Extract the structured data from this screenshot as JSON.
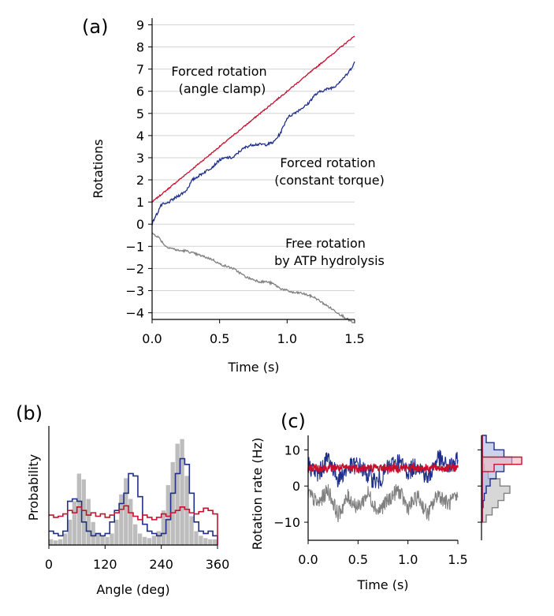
{
  "colors": {
    "red": "#c8102e",
    "blue": "#1f2f8a",
    "gray": "#808080",
    "hist_gray": "#bdbdbd",
    "grid": "#d3d3d3",
    "blue_fill": "#a9b4e0",
    "red_fill": "#f2b7bf"
  },
  "chart_data": [
    {
      "panel": "(a)",
      "type": "line",
      "xlabel": "Time (s)",
      "ylabel": "Rotations",
      "xlim": [
        0,
        1.5
      ],
      "ylim": [
        -4.3,
        9.3
      ],
      "xticks": [
        "0.0",
        "0.5",
        "1.0",
        "1.5"
      ],
      "yticks": [
        "−4",
        "−3",
        "−2",
        "−1",
        "0",
        "1",
        "2",
        "3",
        "4",
        "5",
        "6",
        "7",
        "8",
        "9"
      ],
      "grid": "horizontal",
      "series": [
        {
          "label_lines": [
            "Forced rotation",
            "(angle clamp)"
          ],
          "color": "red",
          "x": [
            0,
            1.5
          ],
          "y": [
            1.0,
            8.5
          ]
        },
        {
          "label_lines": [
            "Forced rotation",
            "(constant torque)"
          ],
          "color": "blue",
          "x": [
            0,
            0.02,
            0.04,
            0.06,
            0.08,
            0.1,
            0.15,
            0.2,
            0.25,
            0.3,
            0.35,
            0.4,
            0.45,
            0.5,
            0.55,
            0.6,
            0.65,
            0.7,
            0.75,
            0.8,
            0.85,
            0.9,
            0.95,
            1.0,
            1.05,
            1.1,
            1.15,
            1.2,
            1.25,
            1.3,
            1.35,
            1.4,
            1.45,
            1.5
          ],
          "y": [
            0.0,
            0.3,
            0.5,
            0.8,
            0.9,
            0.9,
            1.1,
            1.3,
            1.5,
            2.0,
            2.2,
            2.4,
            2.6,
            2.9,
            3.0,
            3.0,
            3.3,
            3.5,
            3.6,
            3.6,
            3.6,
            3.7,
            4.1,
            4.8,
            5.0,
            5.2,
            5.4,
            5.8,
            6.0,
            6.1,
            6.2,
            6.5,
            6.8,
            7.3
          ]
        },
        {
          "label_lines": [
            "Free rotation",
            "by ATP hydrolysis"
          ],
          "color": "gray",
          "x": [
            0,
            0.05,
            0.1,
            0.15,
            0.2,
            0.25,
            0.3,
            0.35,
            0.4,
            0.45,
            0.5,
            0.55,
            0.6,
            0.65,
            0.7,
            0.75,
            0.8,
            0.85,
            0.9,
            0.95,
            1.0,
            1.05,
            1.1,
            1.15,
            1.2,
            1.25,
            1.3,
            1.35,
            1.4,
            1.45,
            1.5
          ],
          "y": [
            -0.4,
            -0.6,
            -1.0,
            -1.1,
            -1.2,
            -1.2,
            -1.3,
            -1.4,
            -1.5,
            -1.6,
            -1.8,
            -1.9,
            -2.0,
            -2.2,
            -2.4,
            -2.5,
            -2.6,
            -2.6,
            -2.7,
            -2.9,
            -3.0,
            -3.1,
            -3.1,
            -3.2,
            -3.3,
            -3.5,
            -3.7,
            -3.9,
            -4.1,
            -4.3,
            -4.5
          ]
        }
      ]
    },
    {
      "panel": "(b)",
      "type": "bar",
      "xlabel": "Angle (deg)",
      "ylabel": "Probability",
      "xlim": [
        0,
        360
      ],
      "xticks": [
        "0",
        "120",
        "240",
        "360"
      ],
      "bin_width": 10,
      "free_rotation_hist": [
        0.05,
        0.04,
        0.05,
        0.1,
        0.22,
        0.38,
        0.62,
        0.57,
        0.4,
        0.2,
        0.1,
        0.08,
        0.07,
        0.1,
        0.22,
        0.44,
        0.58,
        0.4,
        0.18,
        0.1,
        0.07,
        0.06,
        0.08,
        0.12,
        0.3,
        0.52,
        0.72,
        0.88,
        0.92,
        0.6,
        0.25,
        0.12,
        0.08,
        0.06,
        0.05,
        0.05
      ],
      "constant_torque_hist": [
        0.12,
        0.1,
        0.08,
        0.12,
        0.38,
        0.4,
        0.38,
        0.2,
        0.12,
        0.08,
        0.1,
        0.08,
        0.1,
        0.2,
        0.3,
        0.36,
        0.45,
        0.62,
        0.6,
        0.42,
        0.18,
        0.12,
        0.1,
        0.08,
        0.1,
        0.22,
        0.45,
        0.62,
        0.75,
        0.7,
        0.45,
        0.2,
        0.12,
        0.1,
        0.12,
        0.08
      ],
      "angle_clamp_hist": [
        0.26,
        0.24,
        0.25,
        0.27,
        0.3,
        0.28,
        0.33,
        0.3,
        0.26,
        0.28,
        0.25,
        0.27,
        0.24,
        0.26,
        0.28,
        0.31,
        0.34,
        0.28,
        0.25,
        0.22,
        0.26,
        0.24,
        0.22,
        0.24,
        0.27,
        0.25,
        0.28,
        0.3,
        0.33,
        0.31,
        0.28,
        0.27,
        0.29,
        0.32,
        0.3,
        0.27
      ]
    },
    {
      "panel": "(c)",
      "type": "line",
      "xlabel": "Time (s)",
      "ylabel": "Rotation rate (Hz)",
      "xlim": [
        0,
        1.5
      ],
      "ylim": [
        -15,
        14
      ],
      "xticks": [
        "0.0",
        "0.5",
        "1.0",
        "1.5"
      ],
      "yticks": [
        "−10",
        "0",
        "10"
      ],
      "series": [
        {
          "color": "gray",
          "x": [
            0,
            0.1,
            0.2,
            0.3,
            0.4,
            0.5,
            0.6,
            0.7,
            0.8,
            0.9,
            1.0,
            1.1,
            1.2,
            1.3,
            1.4,
            1.5
          ],
          "y": [
            -2,
            -5,
            -1,
            -8,
            -3,
            -6,
            -2,
            -7,
            -4,
            -1,
            -6,
            -3,
            -8,
            -2,
            -5,
            -3
          ]
        },
        {
          "color": "blue",
          "x": [
            0,
            0.1,
            0.2,
            0.3,
            0.4,
            0.5,
            0.6,
            0.7,
            0.8,
            0.9,
            1.0,
            1.1,
            1.2,
            1.3,
            1.4,
            1.5
          ],
          "y": [
            6,
            3,
            8,
            2,
            5,
            6,
            3,
            1,
            5,
            7,
            4,
            6,
            2,
            8,
            5,
            7
          ]
        },
        {
          "color": "red",
          "x": [
            0,
            0.1,
            0.2,
            0.3,
            0.4,
            0.5,
            0.6,
            0.7,
            0.8,
            0.9,
            1.0,
            1.1,
            1.2,
            1.3,
            1.4,
            1.5
          ],
          "y": [
            5,
            5,
            5,
            5,
            5,
            5,
            5,
            5,
            5,
            5,
            5,
            5,
            5,
            5,
            5,
            5
          ]
        }
      ],
      "marginal": {
        "bins": [
          -10,
          -8,
          -6,
          -4,
          -2,
          0,
          2,
          4,
          6,
          8,
          10,
          12
        ],
        "gray": [
          0.1,
          0.25,
          0.4,
          0.55,
          0.7,
          0.45,
          0.15,
          0.05,
          0.02,
          0.01,
          0.0,
          0.0
        ],
        "blue": [
          0.0,
          0.0,
          0.02,
          0.05,
          0.1,
          0.2,
          0.35,
          0.55,
          0.75,
          0.55,
          0.3,
          0.1
        ],
        "red": [
          0.0,
          0.0,
          0.0,
          0.0,
          0.0,
          0.0,
          0.0,
          0.3,
          1.0,
          0.0,
          0.0,
          0.0
        ]
      }
    }
  ]
}
